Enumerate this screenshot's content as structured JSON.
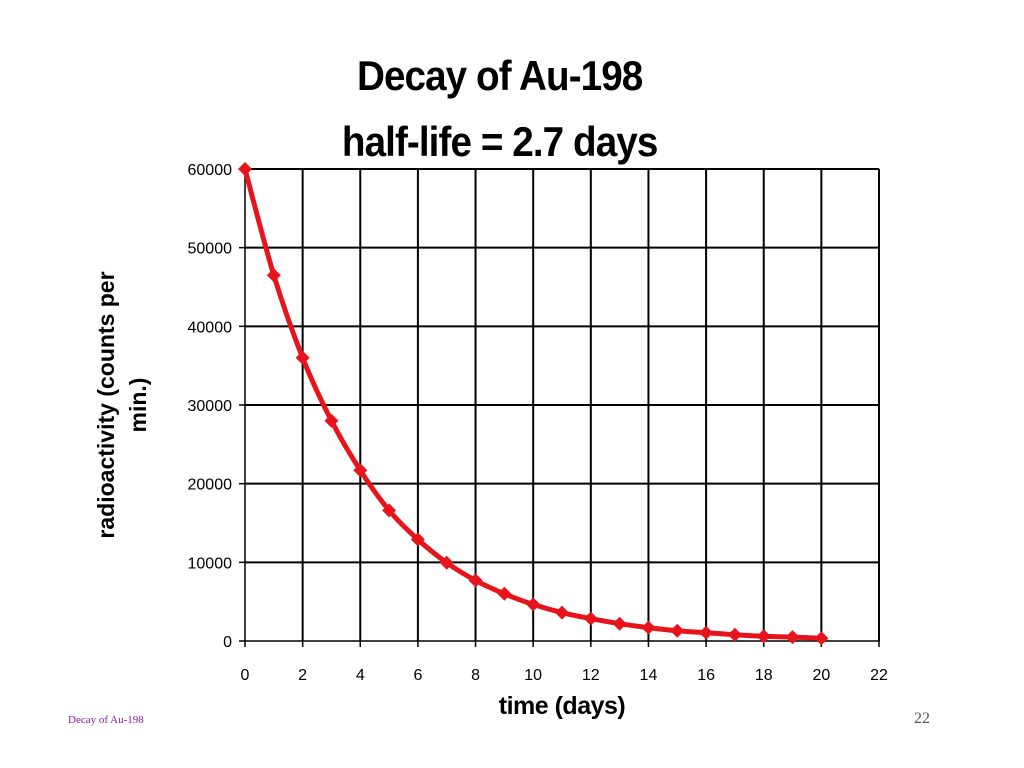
{
  "chart_data": {
    "type": "line",
    "title": "Decay of Au-198",
    "subtitle": "half-life = 2.7 days",
    "xlabel": "time (days)",
    "ylabel": "radioactivity (counts per min.)",
    "xlim": [
      0,
      22
    ],
    "ylim": [
      0,
      60000
    ],
    "x_ticks": [
      0,
      2,
      4,
      6,
      8,
      10,
      12,
      14,
      16,
      18,
      20,
      22
    ],
    "y_ticks": [
      0,
      10000,
      20000,
      30000,
      40000,
      50000,
      60000
    ],
    "grid": true,
    "legend": "none",
    "series": [
      {
        "color": "#e8141b",
        "marker": "diamond",
        "x": [
          0,
          1,
          2,
          3,
          4,
          5,
          6,
          7,
          8,
          9,
          10,
          11,
          12,
          13,
          14,
          15,
          16,
          17,
          18,
          19,
          20
        ],
        "y": [
          60000,
          46500,
          36000,
          28000,
          21700,
          16600,
          12900,
          9950,
          7700,
          6000,
          4650,
          3600,
          2850,
          2200,
          1700,
          1300,
          1050,
          800,
          600,
          500,
          350
        ]
      }
    ]
  },
  "footer": {
    "left_text": "Decay of Au-198",
    "slide_number": "22"
  }
}
